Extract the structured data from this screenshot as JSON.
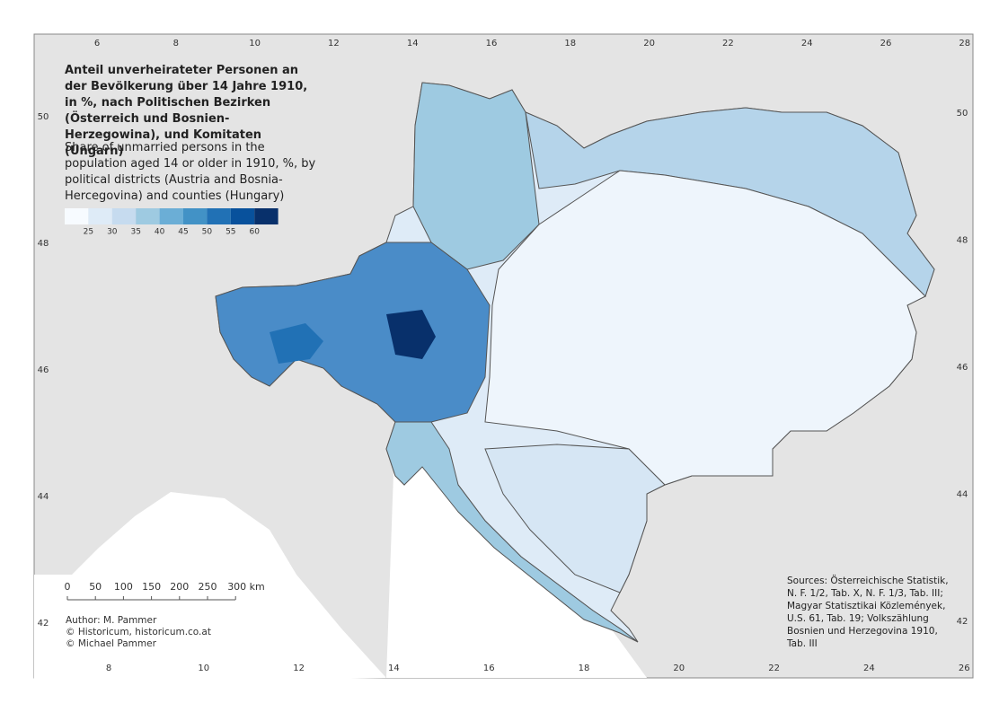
{
  "title": "Anteil unverheirateter Personen an der Bevölkerung über 14 Jahre 1910, in %, nach Politischen Bezirken (Österreich und Bosnien-Herzegowina), und Komitaten (Ungarn)",
  "subtitle": "Share of unmarried persons in the population aged 14 or older in 1910, %, by political districts (Austria and Bosnia-Hercegovina) and counties (Hungary)",
  "legend": {
    "colors": [
      "#f7fbff",
      "#deebf7",
      "#c6dbef",
      "#9ecae1",
      "#6baed6",
      "#4292c6",
      "#2171b5",
      "#08519c",
      "#08306b"
    ],
    "breaks": [
      25,
      30,
      35,
      40,
      45,
      50,
      55,
      60
    ]
  },
  "scale_bar": [
    "0",
    "50",
    "100",
    "150",
    "200",
    "250",
    "300 km"
  ],
  "author": [
    "Author: M. Pammer",
    "© Historicum, historicum.co.at",
    "© Michael Pammer"
  ],
  "sources": "Sources: Österreichische Statistik, N. F. 1/2, Tab. X, N. F. 1/3, Tab. III; Magyar Statisztikai Közlemények, U.S. 61, Tab. 19; Volkszählung Bosnien und Herzegovina 1910, Tab. III",
  "graticule": {
    "top": [
      6,
      8,
      10,
      12,
      14,
      16,
      18,
      20,
      22,
      24,
      26,
      28
    ],
    "bottom": [
      8,
      10,
      12,
      14,
      16,
      18,
      20,
      22,
      24,
      26
    ],
    "left": [
      50,
      48,
      46,
      44,
      42
    ],
    "right": [
      50,
      48,
      46,
      44,
      42
    ]
  }
}
